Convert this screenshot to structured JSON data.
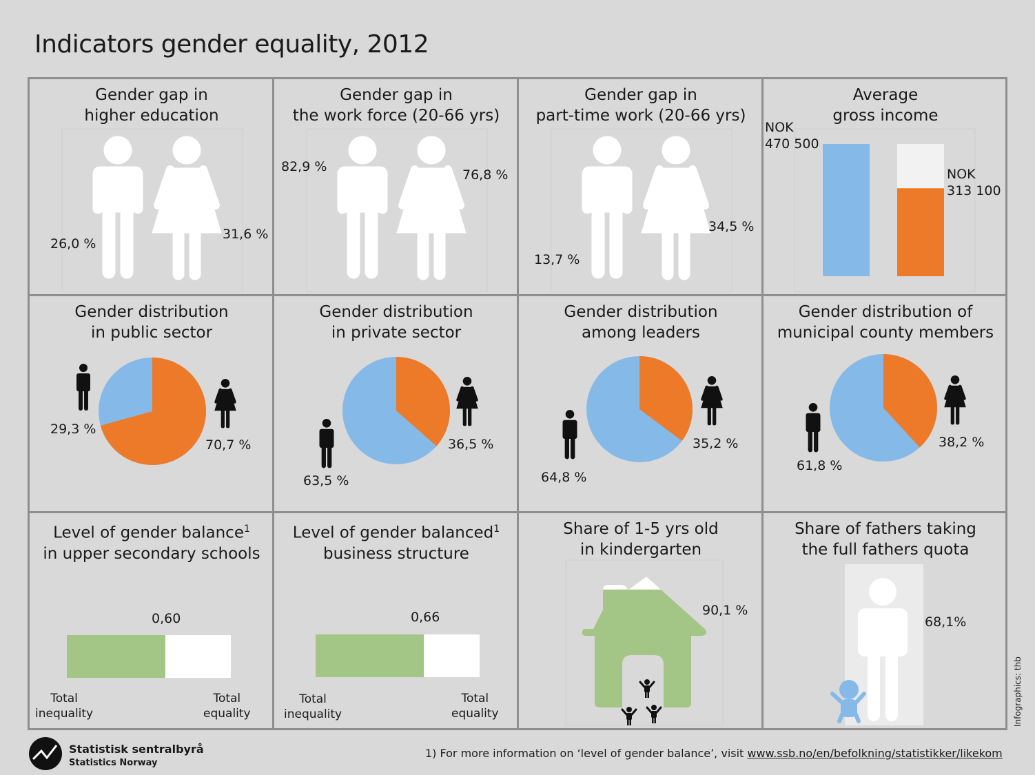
{
  "title": "Indicators gender equality, 2012",
  "colors": {
    "male": "#85bae8",
    "female": "#ec7a29",
    "green": "#a3c585",
    "background": "#d9d9d9",
    "border": "#8e8e8e"
  },
  "panels": {
    "higher_education": {
      "title_line1": "Gender gap in",
      "title_line2": "higher education",
      "male_label": "26,0 %",
      "female_label": "31,6 %",
      "male_value": 26.0,
      "female_value": 31.6
    },
    "work_force": {
      "title_line1": "Gender gap in",
      "title_line2": "the work force (20-66 yrs)",
      "male_label": "82,9 %",
      "female_label": "76,8 %",
      "male_value": 82.9,
      "female_value": 76.8
    },
    "part_time": {
      "title_line1": "Gender gap in",
      "title_line2": "part-time work (20-66 yrs)",
      "male_label": "13,7 %",
      "female_label": "34,5 %",
      "male_value": 13.7,
      "female_value": 34.5
    },
    "income": {
      "title_line1": "Average",
      "title_line2": "gross income",
      "male_label_1": "NOK",
      "male_label_2": "470 500",
      "female_label_1": "NOK",
      "female_label_2": "313 100",
      "male_value": 470500,
      "female_value": 313100
    },
    "public_sector": {
      "title_line1": "Gender distribution",
      "title_line2": "in public sector",
      "male_label": "29,3 %",
      "female_label": "70,7 %",
      "male_value": 29.3,
      "female_value": 70.7
    },
    "private_sector": {
      "title_line1": "Gender distribution",
      "title_line2": "in private sector",
      "male_label": "63,5 %",
      "female_label": "36,5 %",
      "male_value": 63.5,
      "female_value": 36.5
    },
    "leaders": {
      "title_line1": "Gender distribution",
      "title_line2": "among leaders",
      "male_label": "64,8 %",
      "female_label": "35,2 %",
      "male_value": 64.8,
      "female_value": 35.2
    },
    "municipal": {
      "title_line1": "Gender distribution of",
      "title_line2": "municipal county members",
      "male_label": "61,8 %",
      "female_label": "38,2 %",
      "male_value": 61.8,
      "female_value": 38.2
    },
    "schools": {
      "title_line1": "Level of gender balance",
      "title_sup": "1",
      "title_line2": "in upper secondary schools",
      "value_label": "0,60",
      "value": 0.6,
      "left_1": "Total",
      "left_2": "inequality",
      "right_1": "Total",
      "right_2": "equality"
    },
    "business": {
      "title_line1": "Level of gender balanced",
      "title_sup": "1",
      "title_line2": "business structure",
      "value_label": "0,66",
      "value": 0.66,
      "left_1": "Total",
      "left_2": "inequality",
      "right_1": "Total",
      "right_2": "equality"
    },
    "kindergarten": {
      "title_line1": "Share of 1-5 yrs old",
      "title_line2": "in kindergarten",
      "value_label": "90,1 %",
      "value": 90.1
    },
    "fathers": {
      "title_line1": "Share of fathers taking",
      "title_line2": "the full fathers quota",
      "value_label": "68,1%",
      "value": 68.1
    }
  },
  "footer": {
    "logo_name": "Statistisk sentralbyrå",
    "logo_sub": "Statistics Norway",
    "footnote_text": "1) For more information on ‘level of gender balance’, visit ",
    "footnote_link": "www.ssb.no/en/befolkning/statistikker/likekom",
    "credit": "Infographics: thb"
  }
}
